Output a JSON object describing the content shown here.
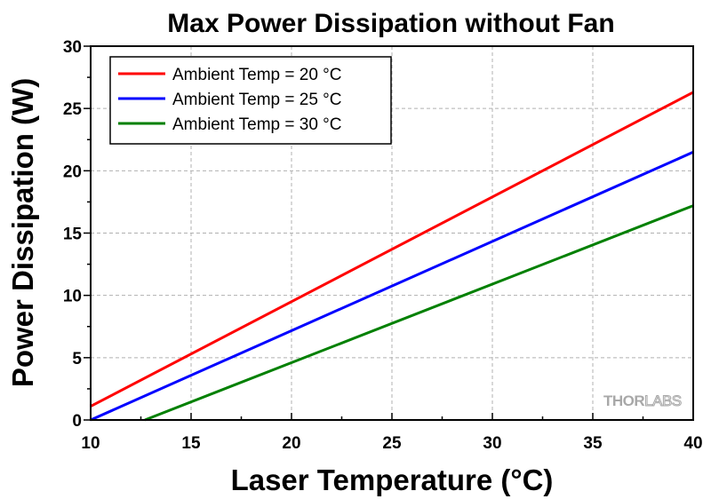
{
  "chart_data": {
    "type": "line",
    "title": "Max Power Dissipation without Fan",
    "xlabel": "Laser Temperature (°C)",
    "ylabel": "Power Dissipation (W)",
    "xlim": [
      10,
      40
    ],
    "ylim": [
      0,
      30
    ],
    "xticks": [
      10,
      15,
      20,
      25,
      30,
      35,
      40
    ],
    "yticks": [
      0,
      5,
      10,
      15,
      20,
      25,
      30
    ],
    "grid": true,
    "legend_position": "top-left",
    "series": [
      {
        "name": "Ambient Temp = 20 °C",
        "color": "#ff0000",
        "x": [
          10,
          40
        ],
        "y": [
          1.1,
          26.3
        ]
      },
      {
        "name": "Ambient Temp = 25 °C",
        "color": "#0000ff",
        "x": [
          10,
          40
        ],
        "y": [
          0.0,
          21.5
        ]
      },
      {
        "name": "Ambient Temp = 30 °C",
        "color": "#008000",
        "x": [
          12.7,
          40
        ],
        "y": [
          0.0,
          17.2
        ]
      }
    ],
    "watermark": "THORLABS"
  }
}
